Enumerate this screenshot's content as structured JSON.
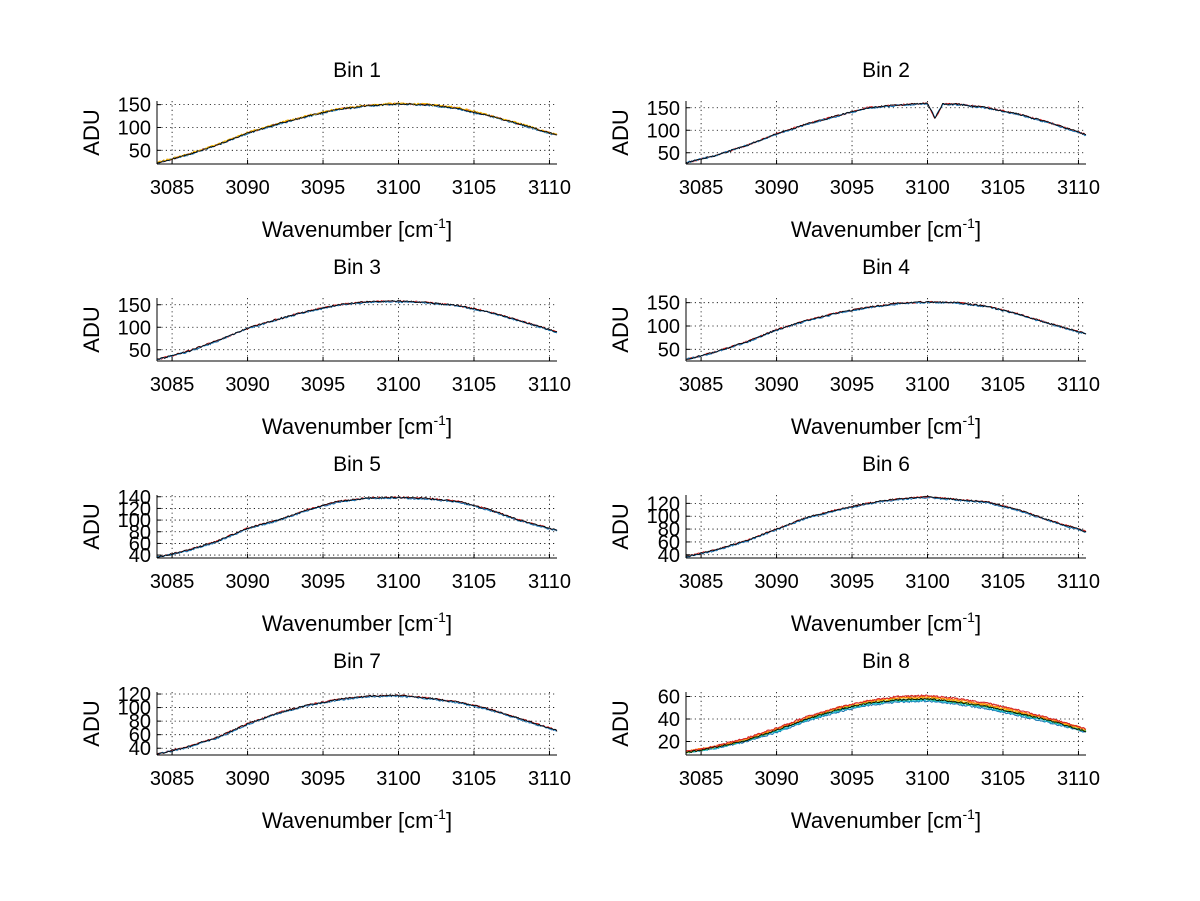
{
  "chart_data": [
    {
      "type": "line",
      "title": "Bin 1",
      "xlabel": "Wavenumber [cm",
      "xlabel_sup": "-1",
      "xlabel_end": "]",
      "ylabel": "ADU",
      "xlim": [
        3084,
        3110.5
      ],
      "ylim": [
        20,
        158
      ],
      "xticks": [
        3085,
        3090,
        3095,
        3100,
        3105,
        3110
      ],
      "yticks": [
        50,
        100,
        150
      ],
      "x": [
        3084,
        3086,
        3088,
        3090,
        3092,
        3094,
        3096,
        3098,
        3100,
        3102,
        3104,
        3106,
        3108,
        3110,
        3110.5
      ],
      "series": [
        {
          "color": "#d62728",
          "values": [
            22,
            40,
            62,
            88,
            108,
            125,
            140,
            148,
            152,
            150,
            142,
            126,
            108,
            88,
            84
          ]
        },
        {
          "color": "#1f77b4",
          "values": [
            22,
            39,
            61,
            87,
            107,
            124,
            139,
            147,
            151,
            149,
            140,
            125,
            107,
            87,
            83
          ]
        },
        {
          "color": "#f2b400",
          "values": [
            23,
            41,
            63,
            89,
            109,
            126,
            141,
            149,
            153,
            151,
            143,
            127,
            109,
            89,
            85
          ]
        },
        {
          "color": "#000000",
          "values": [
            22,
            40,
            62,
            88,
            108,
            125,
            140,
            148,
            152,
            150,
            141,
            126,
            108,
            88,
            84
          ]
        }
      ]
    },
    {
      "type": "line",
      "title": "Bin 2",
      "xlabel": "Wavenumber [cm",
      "xlabel_sup": "-1",
      "xlabel_end": "]",
      "ylabel": "ADU",
      "xlim": [
        3084,
        3110.5
      ],
      "ylim": [
        25,
        165
      ],
      "xticks": [
        3085,
        3090,
        3095,
        3100,
        3105,
        3110
      ],
      "yticks": [
        50,
        100,
        150
      ],
      "x": [
        3084,
        3086,
        3088,
        3090,
        3092,
        3094,
        3096,
        3098,
        3100,
        3100.5,
        3101,
        3102,
        3104,
        3106,
        3108,
        3110,
        3110.5
      ],
      "series": [
        {
          "color": "#d62728",
          "values": [
            28,
            44,
            66,
            92,
            114,
            132,
            150,
            156,
            160,
            125,
            158,
            158,
            150,
            136,
            118,
            96,
            90
          ]
        },
        {
          "color": "#1f77b4",
          "values": [
            28,
            44,
            66,
            91,
            113,
            131,
            149,
            155,
            159,
            128,
            157,
            157,
            149,
            135,
            117,
            95,
            89
          ]
        },
        {
          "color": "#000000",
          "values": [
            28,
            44,
            66,
            92,
            114,
            132,
            150,
            156,
            160,
            126,
            158,
            158,
            150,
            136,
            118,
            96,
            90
          ]
        }
      ]
    },
    {
      "type": "line",
      "title": "Bin 3",
      "xlabel": "Wavenumber [cm",
      "xlabel_sup": "-1",
      "xlabel_end": "]",
      "ylabel": "ADU",
      "xlim": [
        3084,
        3110.5
      ],
      "ylim": [
        25,
        165
      ],
      "xticks": [
        3085,
        3090,
        3095,
        3100,
        3105,
        3110
      ],
      "yticks": [
        50,
        100,
        150
      ],
      "x": [
        3084,
        3086,
        3088,
        3090,
        3092,
        3094,
        3096,
        3098,
        3100,
        3102,
        3104,
        3106,
        3108,
        3110,
        3110.5
      ],
      "series": [
        {
          "color": "#d62728",
          "values": [
            28,
            46,
            70,
            98,
            118,
            136,
            150,
            157,
            158,
            155,
            148,
            134,
            115,
            95,
            89
          ]
        },
        {
          "color": "#1f77b4",
          "values": [
            28,
            45,
            69,
            97,
            117,
            135,
            149,
            156,
            157,
            154,
            147,
            133,
            114,
            94,
            88
          ]
        },
        {
          "color": "#000000",
          "values": [
            28,
            46,
            70,
            98,
            118,
            136,
            150,
            157,
            158,
            155,
            148,
            134,
            115,
            95,
            89
          ]
        }
      ]
    },
    {
      "type": "line",
      "title": "Bin 4",
      "xlabel": "Wavenumber [cm",
      "xlabel_sup": "-1",
      "xlabel_end": "]",
      "ylabel": "ADU",
      "xlim": [
        3084,
        3110.5
      ],
      "ylim": [
        25,
        160
      ],
      "xticks": [
        3085,
        3090,
        3095,
        3100,
        3105,
        3110
      ],
      "yticks": [
        50,
        100,
        150
      ],
      "x": [
        3084,
        3086,
        3088,
        3090,
        3092,
        3094,
        3096,
        3098,
        3100,
        3102,
        3104,
        3106,
        3108,
        3110,
        3110.5
      ],
      "series": [
        {
          "color": "#d62728",
          "values": [
            28,
            45,
            66,
            92,
            112,
            128,
            140,
            148,
            152,
            150,
            142,
            126,
            106,
            88,
            84
          ]
        },
        {
          "color": "#1f77b4",
          "values": [
            28,
            44,
            65,
            91,
            111,
            127,
            139,
            147,
            151,
            149,
            141,
            125,
            105,
            87,
            83
          ]
        },
        {
          "color": "#000000",
          "values": [
            28,
            45,
            66,
            92,
            112,
            128,
            140,
            148,
            152,
            150,
            142,
            126,
            106,
            88,
            84
          ]
        }
      ]
    },
    {
      "type": "line",
      "title": "Bin 5",
      "xlabel": "Wavenumber [cm",
      "xlabel_sup": "-1",
      "xlabel_end": "]",
      "ylabel": "ADU",
      "xlim": [
        3084,
        3110.5
      ],
      "ylim": [
        35,
        143
      ],
      "xticks": [
        3085,
        3090,
        3095,
        3100,
        3105,
        3110
      ],
      "yticks": [
        40,
        60,
        80,
        100,
        120,
        140
      ],
      "x": [
        3084,
        3086,
        3088,
        3090,
        3092,
        3094,
        3096,
        3098,
        3100,
        3102,
        3104,
        3106,
        3108,
        3110,
        3110.5
      ],
      "series": [
        {
          "color": "#d62728",
          "values": [
            36,
            48,
            64,
            86,
            100,
            118,
            132,
            138,
            139,
            137,
            132,
            118,
            100,
            86,
            83
          ]
        },
        {
          "color": "#1f77b4",
          "values": [
            36,
            47,
            63,
            85,
            99,
            117,
            131,
            137,
            138,
            136,
            131,
            117,
            99,
            85,
            82
          ]
        },
        {
          "color": "#000000",
          "values": [
            36,
            48,
            64,
            86,
            100,
            118,
            132,
            138,
            139,
            137,
            132,
            118,
            100,
            86,
            83
          ]
        }
      ]
    },
    {
      "type": "line",
      "title": "Bin 6",
      "xlabel": "Wavenumber [cm",
      "xlabel_sup": "-1",
      "xlabel_end": "]",
      "ylabel": "ADU",
      "xlim": [
        3084,
        3110.5
      ],
      "ylim": [
        35,
        133
      ],
      "xticks": [
        3085,
        3090,
        3095,
        3100,
        3105,
        3110
      ],
      "yticks": [
        40,
        60,
        80,
        100,
        120
      ],
      "x": [
        3084,
        3086,
        3088,
        3090,
        3092,
        3094,
        3096,
        3098,
        3100,
        3102,
        3104,
        3106,
        3108,
        3110,
        3110.5
      ],
      "series": [
        {
          "color": "#d62728",
          "values": [
            37,
            48,
            62,
            80,
            98,
            110,
            120,
            127,
            130,
            126,
            122,
            110,
            94,
            80,
            76
          ]
        },
        {
          "color": "#1f77b4",
          "values": [
            37,
            47,
            61,
            79,
            97,
            109,
            119,
            126,
            129,
            125,
            121,
            109,
            93,
            79,
            75
          ]
        },
        {
          "color": "#000000",
          "values": [
            37,
            48,
            62,
            80,
            98,
            110,
            120,
            127,
            130,
            126,
            122,
            110,
            94,
            80,
            76
          ]
        }
      ]
    },
    {
      "type": "line",
      "title": "Bin 7",
      "xlabel": "Wavenumber [cm",
      "xlabel_sup": "-1",
      "xlabel_end": "]",
      "ylabel": "ADU",
      "xlim": [
        3084,
        3110.5
      ],
      "ylim": [
        30,
        123
      ],
      "xticks": [
        3085,
        3090,
        3095,
        3100,
        3105,
        3110
      ],
      "yticks": [
        40,
        60,
        80,
        100,
        120
      ],
      "x": [
        3084,
        3086,
        3088,
        3090,
        3092,
        3094,
        3096,
        3098,
        3100,
        3102,
        3104,
        3106,
        3108,
        3110,
        3110.5
      ],
      "series": [
        {
          "color": "#d62728",
          "values": [
            31,
            42,
            56,
            76,
            92,
            104,
            112,
            117,
            118,
            114,
            108,
            98,
            84,
            70,
            66
          ]
        },
        {
          "color": "#1f77b4",
          "values": [
            31,
            41,
            55,
            75,
            91,
            103,
            111,
            116,
            117,
            113,
            107,
            97,
            83,
            69,
            65
          ]
        },
        {
          "color": "#000000",
          "values": [
            31,
            42,
            56,
            76,
            92,
            104,
            112,
            117,
            118,
            114,
            108,
            98,
            84,
            70,
            66
          ]
        }
      ]
    },
    {
      "type": "line",
      "title": "Bin 8",
      "xlabel": "Wavenumber [cm",
      "xlabel_sup": "-1",
      "xlabel_end": "]",
      "ylabel": "ADU",
      "xlim": [
        3084,
        3110.5
      ],
      "ylim": [
        8,
        64
      ],
      "xticks": [
        3085,
        3090,
        3095,
        3100,
        3105,
        3110
      ],
      "yticks": [
        20,
        40,
        60
      ],
      "x": [
        3084,
        3086,
        3088,
        3090,
        3092,
        3094,
        3096,
        3098,
        3100,
        3102,
        3104,
        3106,
        3108,
        3110,
        3110.5
      ],
      "series": [
        {
          "color": "#1f77b4",
          "values": [
            10,
            14,
            20,
            28,
            38,
            46,
            52,
            55,
            56,
            53,
            49,
            43,
            37,
            30,
            28
          ]
        },
        {
          "color": "#17becf",
          "values": [
            10,
            14,
            21,
            29,
            39,
            47,
            53,
            56,
            57,
            54,
            50,
            44,
            38,
            31,
            29
          ]
        },
        {
          "color": "#2ca02c",
          "values": [
            10,
            15,
            21,
            30,
            40,
            48,
            54,
            57,
            58,
            55,
            51,
            45,
            39,
            31,
            29
          ]
        },
        {
          "color": "#f2b400",
          "values": [
            11,
            15,
            22,
            31,
            41,
            49,
            55,
            58,
            59,
            56,
            52,
            46,
            40,
            32,
            30
          ]
        },
        {
          "color": "#ff7f0e",
          "values": [
            11,
            16,
            22,
            31,
            41,
            50,
            56,
            59,
            60,
            57,
            53,
            47,
            40,
            33,
            31
          ]
        },
        {
          "color": "#d62728",
          "values": [
            11,
            16,
            23,
            32,
            42,
            50,
            56,
            60,
            61,
            58,
            54,
            48,
            41,
            33,
            31
          ]
        },
        {
          "color": "#000000",
          "values": [
            10,
            15,
            21,
            30,
            40,
            48,
            54,
            57,
            58,
            55,
            51,
            45,
            39,
            31,
            29
          ]
        }
      ]
    }
  ]
}
